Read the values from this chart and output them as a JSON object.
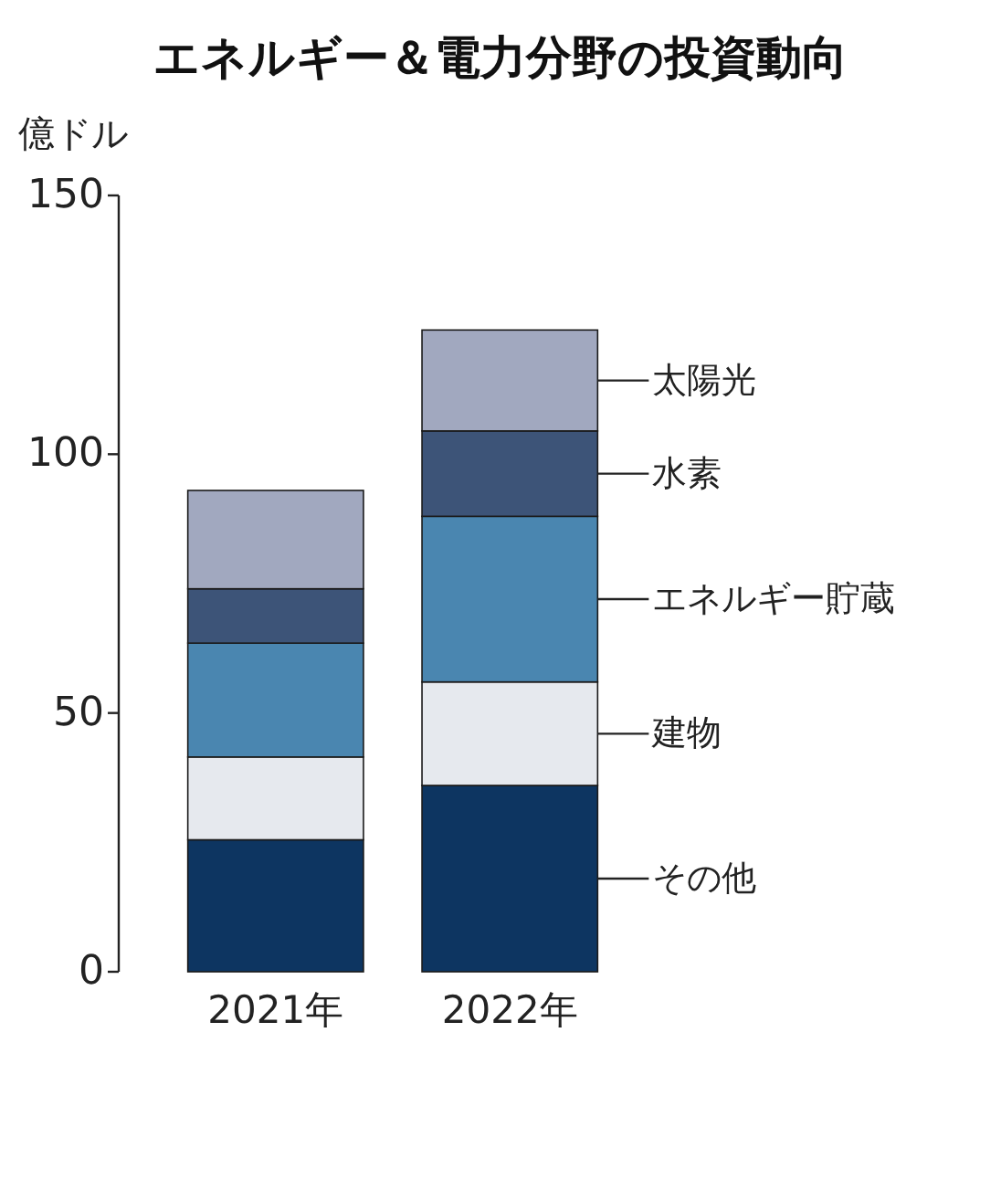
{
  "chart_data": {
    "type": "bar",
    "title": "エネルギー＆電力分野の投資動向",
    "ylabel": "億ドル",
    "categories": [
      "2021年",
      "2022年"
    ],
    "stacked": true,
    "legend": "right",
    "ylim": [
      0,
      150
    ],
    "yticks": [
      0,
      50,
      100,
      150
    ],
    "series": [
      {
        "name": "その他",
        "color": "#0d3561",
        "values": [
          25.5,
          36
        ]
      },
      {
        "name": "建物",
        "color": "#e6e9ee",
        "values": [
          16,
          20
        ]
      },
      {
        "name": "エネルギー貯蔵",
        "color": "#4a86b0",
        "values": [
          22,
          32
        ]
      },
      {
        "name": "水素",
        "color": "#3d5478",
        "values": [
          10.5,
          16.5
        ]
      },
      {
        "name": "太陽光",
        "color": "#a1a8bf",
        "values": [
          19,
          19.5
        ]
      }
    ]
  }
}
